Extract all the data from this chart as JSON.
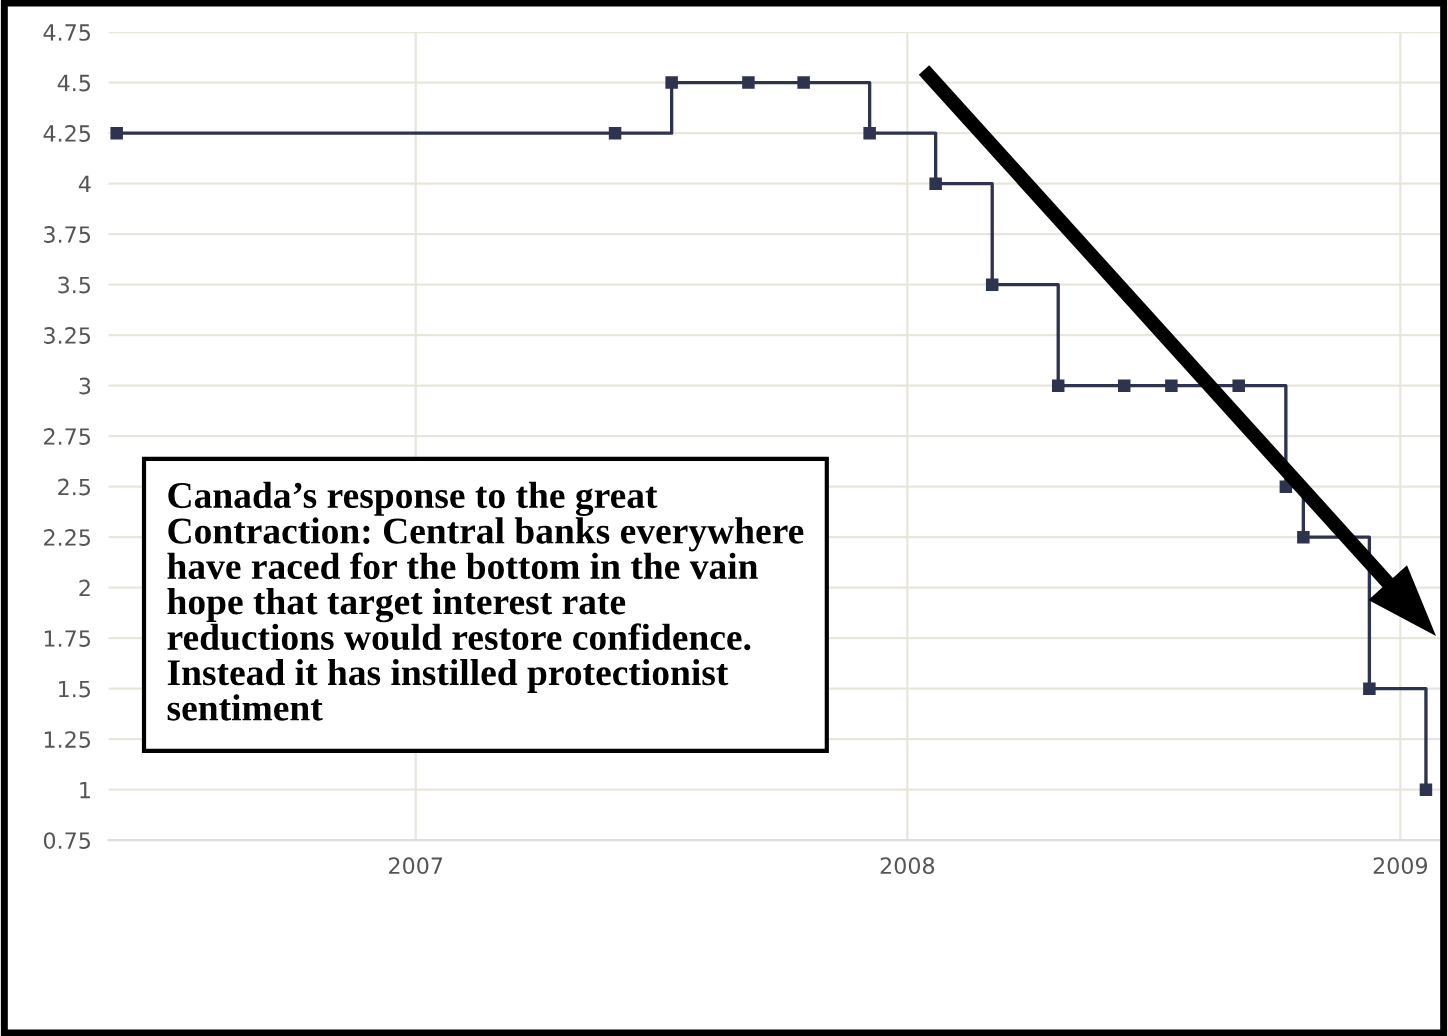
{
  "chart_data": {
    "type": "step",
    "color": "#2e3350",
    "marker": "square",
    "line_style": "solid",
    "grid": true,
    "x": [
      "2006-05-24",
      "2007-05-29",
      "2007-07-10",
      "2007-09-05",
      "2007-10-16",
      "2007-12-04",
      "2008-01-22",
      "2008-03-04",
      "2008-04-22",
      "2008-06-10",
      "2008-07-15",
      "2008-09-03",
      "2008-10-08",
      "2008-10-21",
      "2008-12-09",
      "2009-01-20"
    ],
    "values": [
      4.25,
      4.25,
      4.5,
      4.5,
      4.5,
      4.25,
      4.0,
      3.5,
      3.0,
      3.0,
      3.0,
      3.0,
      2.5,
      2.25,
      1.5,
      1.0
    ],
    "xlim": [
      "2006-05-18",
      "2009-01-31"
    ],
    "xticks": [
      {
        "value": "2007-01-01",
        "label": "2007"
      },
      {
        "value": "2008-01-01",
        "label": "2008"
      },
      {
        "value": "2009-01-01",
        "label": "2009"
      }
    ],
    "ylim": [
      0.75,
      4.75
    ],
    "yticks": [
      0.75,
      1,
      1.25,
      1.5,
      1.75,
      2,
      2.25,
      2.5,
      2.75,
      3,
      3.25,
      3.5,
      3.75,
      4,
      4.25,
      4.5,
      4.75
    ],
    "annotations": [
      "Canada’s response to the great\nContraction: Central banks everywhere\nhave raced for the bottom in the vain\nhope that target interest rate\nreductions would restore confidence.\nInstead it has instilled protectionist\nsentiment"
    ]
  }
}
